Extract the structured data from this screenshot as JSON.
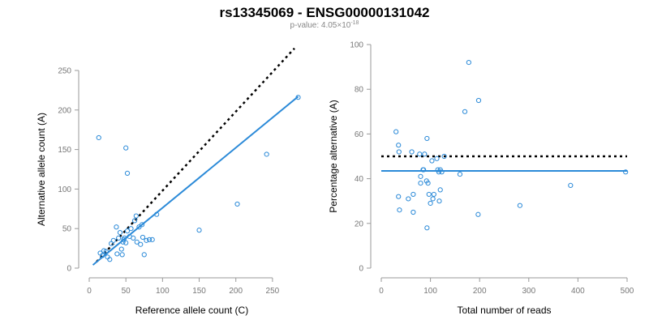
{
  "title": "rs13345069 - ENSG00000131042",
  "subtitle": {
    "prefix": "p-value: 4.05×10",
    "exponent": "-18"
  },
  "colors": {
    "points": "#2b8ad8",
    "fit": "#2b8ad8",
    "reference": "#000000"
  },
  "chart_data": [
    {
      "type": "scatter",
      "xlabel": "Reference allele count (C)",
      "ylabel": "Alternative allele count (A)",
      "xlim": [
        0,
        280
      ],
      "ylim": [
        0,
        250
      ],
      "xticks": [
        0,
        50,
        100,
        150,
        200,
        250
      ],
      "yticks": [
        0,
        50,
        100,
        150,
        200,
        250
      ],
      "points": [
        [
          13,
          165
        ],
        [
          50,
          152
        ],
        [
          52,
          120
        ],
        [
          15,
          19
        ],
        [
          18,
          16
        ],
        [
          20,
          22
        ],
        [
          23,
          21
        ],
        [
          25,
          14
        ],
        [
          28,
          11
        ],
        [
          30,
          31
        ],
        [
          33,
          35
        ],
        [
          37,
          52
        ],
        [
          38,
          18
        ],
        [
          40,
          38
        ],
        [
          42,
          45
        ],
        [
          44,
          24
        ],
        [
          45,
          17
        ],
        [
          46,
          33
        ],
        [
          47,
          36
        ],
        [
          48,
          38
        ],
        [
          50,
          32
        ],
        [
          52,
          47
        ],
        [
          55,
          40
        ],
        [
          57,
          50
        ],
        [
          60,
          38
        ],
        [
          62,
          60
        ],
        [
          64,
          66
        ],
        [
          65,
          33
        ],
        [
          68,
          52
        ],
        [
          70,
          30
        ],
        [
          72,
          55
        ],
        [
          73,
          39
        ],
        [
          75,
          17
        ],
        [
          78,
          35
        ],
        [
          82,
          36
        ],
        [
          86,
          36
        ],
        [
          92,
          68
        ],
        [
          150,
          48
        ],
        [
          202,
          81
        ],
        [
          242,
          144
        ],
        [
          285,
          216
        ]
      ],
      "fit_line": {
        "from": [
          5,
          4
        ],
        "to": [
          285,
          217
        ]
      },
      "reference_line": {
        "from": [
          10,
          8
        ],
        "to": [
          280,
          278
        ]
      }
    },
    {
      "type": "scatter",
      "xlabel": "Total number of reads",
      "ylabel": "Percentage alternative (A)",
      "xlim": [
        0,
        500
      ],
      "ylim": [
        0,
        100
      ],
      "xticks": [
        0,
        100,
        200,
        300,
        400,
        500
      ],
      "yticks": [
        0,
        20,
        40,
        60,
        80,
        100
      ],
      "points": [
        [
          30,
          61
        ],
        [
          35,
          55
        ],
        [
          36,
          52
        ],
        [
          35,
          32
        ],
        [
          37,
          26
        ],
        [
          55,
          31
        ],
        [
          62,
          52
        ],
        [
          65,
          33
        ],
        [
          65,
          25
        ],
        [
          78,
          51
        ],
        [
          80,
          41
        ],
        [
          80,
          38
        ],
        [
          85,
          44
        ],
        [
          86,
          44
        ],
        [
          88,
          51
        ],
        [
          92,
          39
        ],
        [
          93,
          58
        ],
        [
          95,
          38
        ],
        [
          93,
          18
        ],
        [
          97,
          33
        ],
        [
          100,
          29
        ],
        [
          103,
          48
        ],
        [
          105,
          31
        ],
        [
          107,
          33
        ],
        [
          113,
          49
        ],
        [
          115,
          44
        ],
        [
          117,
          43
        ],
        [
          118,
          30
        ],
        [
          120,
          44
        ],
        [
          120,
          35
        ],
        [
          123,
          43
        ],
        [
          128,
          50
        ],
        [
          160,
          42
        ],
        [
          170,
          70
        ],
        [
          178,
          92
        ],
        [
          197,
          24
        ],
        [
          198,
          75
        ],
        [
          282,
          28
        ],
        [
          385,
          37
        ],
        [
          497,
          43
        ]
      ],
      "fit_line": {
        "from": [
          0,
          43.5
        ],
        "to": [
          500,
          43.5
        ]
      },
      "reference_line": {
        "from": [
          0,
          50
        ],
        "to": [
          500,
          50
        ]
      }
    }
  ]
}
